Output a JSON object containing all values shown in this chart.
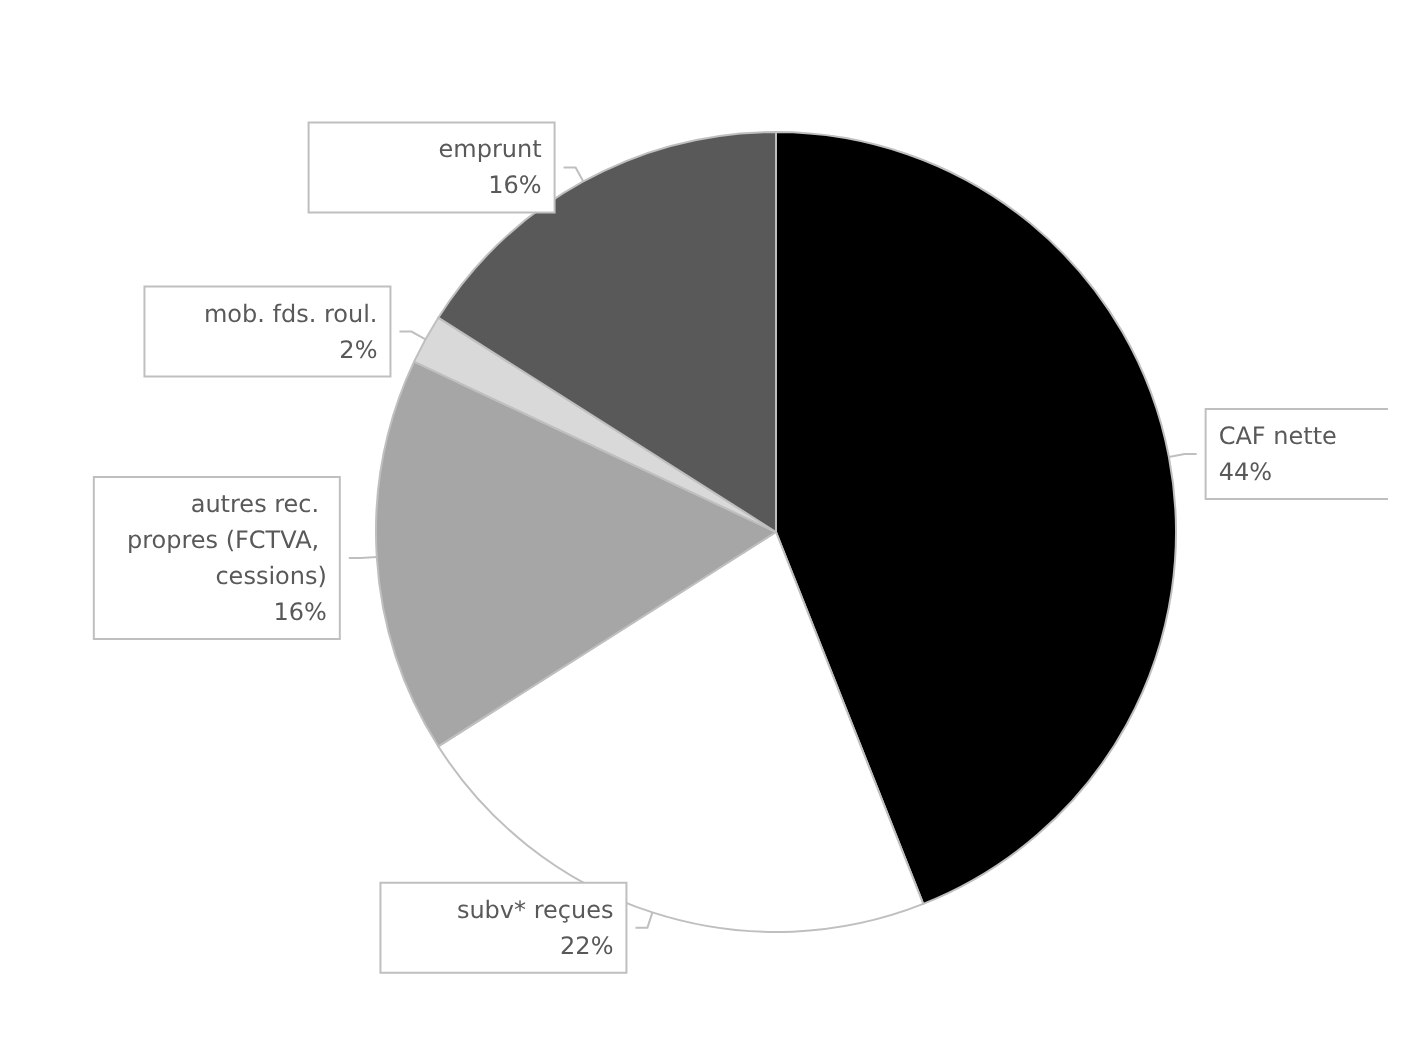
{
  "chart_data": {
    "type": "pie",
    "categories": [
      "CAF nette",
      "subv* reçues",
      "autres rec. propres (FCTVA, cessions)",
      "mob. fds. roul.",
      "emprunt"
    ],
    "values": [
      44,
      22,
      16,
      2,
      16
    ],
    "colors": [
      "#000000",
      "#ffffff",
      "#a6a6a6",
      "#d9d9d9",
      "#595959"
    ],
    "value_labels": [
      "44%",
      "22%",
      "16%",
      "2%",
      "16%"
    ],
    "legend": false
  }
}
